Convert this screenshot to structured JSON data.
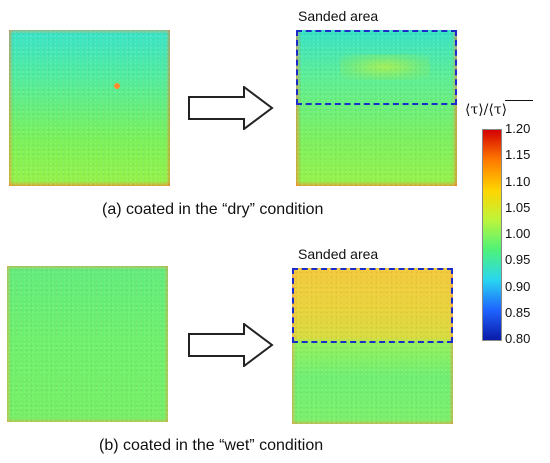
{
  "labels": {
    "sanded_top": "Sanded area",
    "sanded_bottom": "Sanded area",
    "caption_a": "(a) coated in the “dry” condition",
    "caption_b": "(b) coated in the “wet” condition"
  },
  "colorbar": {
    "title": "⟨τ⟩/⟨τ⟩",
    "ticks": [
      "1.20",
      "1.15",
      "1.10",
      "1.05",
      "1.00",
      "0.95",
      "0.90",
      "0.85",
      "0.80"
    ],
    "min": 0.8,
    "max": 1.2,
    "colors": [
      "#d30000",
      "#ff7a00",
      "#ffd400",
      "#bdf53a",
      "#4df27a",
      "#2ad6f0",
      "#1f63ff",
      "#0a1aa8"
    ]
  },
  "colors": {
    "sanded_border": "#1b2cc9",
    "arrow_stroke": "#222222",
    "arrow_fill": "#ffffff"
  }
}
